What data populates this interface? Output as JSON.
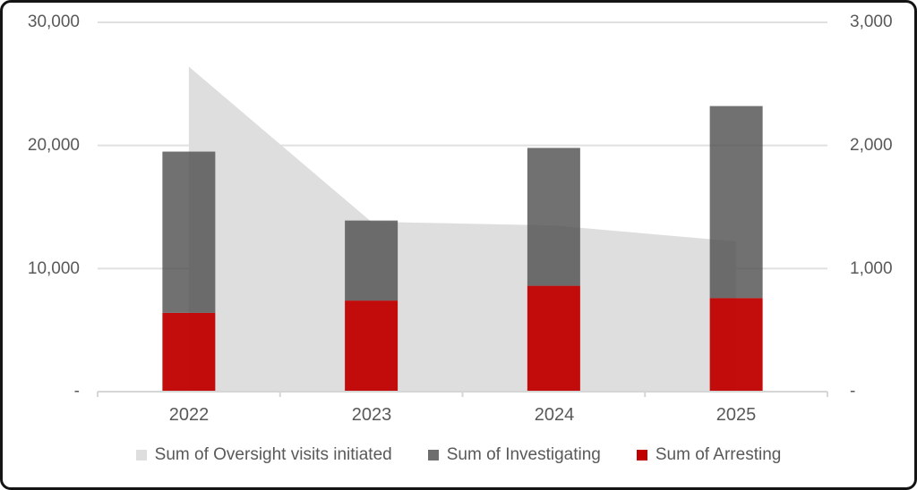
{
  "frame": {
    "background": "#ffffff",
    "border_color": "#141414"
  },
  "chart_data": {
    "type": "combo (area on primary axis + stacked bars on secondary axis)",
    "title": "",
    "xlabel": "",
    "ylabel": "",
    "categories": [
      "2022",
      "2023",
      "2024",
      "2025"
    ],
    "series": [
      {
        "name": "Sum of Oversight visits initiated",
        "chart_type": "area",
        "axis": "left",
        "color": "#dedede",
        "opacity": 1,
        "legend_color": "#dedede",
        "values": [
          26400,
          13800,
          13500,
          12200
        ]
      },
      {
        "name": "Sum of Investigating",
        "chart_type": "stacked-bar",
        "axis": "right",
        "color": "#4d4d4d",
        "opacity": 0.8,
        "legend_color": "#6e6e6e",
        "values": [
          1310,
          650,
          1120,
          1560
        ]
      },
      {
        "name": "Sum of Arresting",
        "chart_type": "stacked-bar",
        "axis": "right",
        "color": "#c00000",
        "opacity": 0.95,
        "legend_color": "#c00000",
        "values": [
          640,
          740,
          860,
          760
        ]
      }
    ],
    "bar_stack_totals_right_axis": [
      1950,
      1390,
      1980,
      2320
    ],
    "left_axis": {
      "min": 0,
      "max": 30000,
      "tick_labels_top_to_bottom": [
        "30,000",
        "20,000",
        "10,000",
        "-"
      ]
    },
    "right_axis": {
      "min": 0,
      "max": 3000,
      "tick_labels_top_to_bottom": [
        "3,000",
        "2,000",
        "1,000",
        "-"
      ]
    },
    "grid": true,
    "gridline_color": "#e0e0e0",
    "axis_line_color": "#d6d6d6",
    "label_color": "#595959",
    "legend_position": "bottom"
  }
}
